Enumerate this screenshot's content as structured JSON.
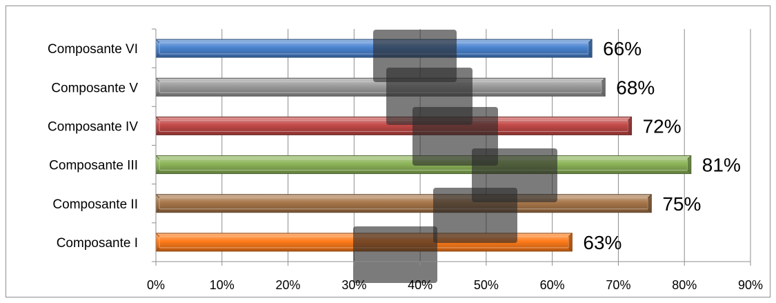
{
  "chart_data": {
    "type": "bar",
    "orientation": "horizontal",
    "categories": [
      "Composante I",
      "Composante II",
      "Composante III",
      "Composante IV",
      "Composante V",
      "Composante VI"
    ],
    "values": [
      63,
      75,
      81,
      72,
      68,
      66
    ],
    "data_labels": [
      "63%",
      "75%",
      "81%",
      "72%",
      "68%",
      "66%"
    ],
    "colors": [
      "#ff7b1a",
      "#a8774a",
      "#8cb458",
      "#c34a48",
      "#9a9a9a",
      "#4a84d0"
    ],
    "xlim": [
      0,
      90
    ],
    "x_ticks": [
      0,
      10,
      20,
      30,
      40,
      50,
      60,
      70,
      80,
      90
    ],
    "x_tick_labels": [
      "0%",
      "10%",
      "20%",
      "30%",
      "40%",
      "50%",
      "60%",
      "70%",
      "80%",
      "90%"
    ],
    "grid": true,
    "legend": "none",
    "title": "",
    "xlabel": "",
    "ylabel": ""
  }
}
